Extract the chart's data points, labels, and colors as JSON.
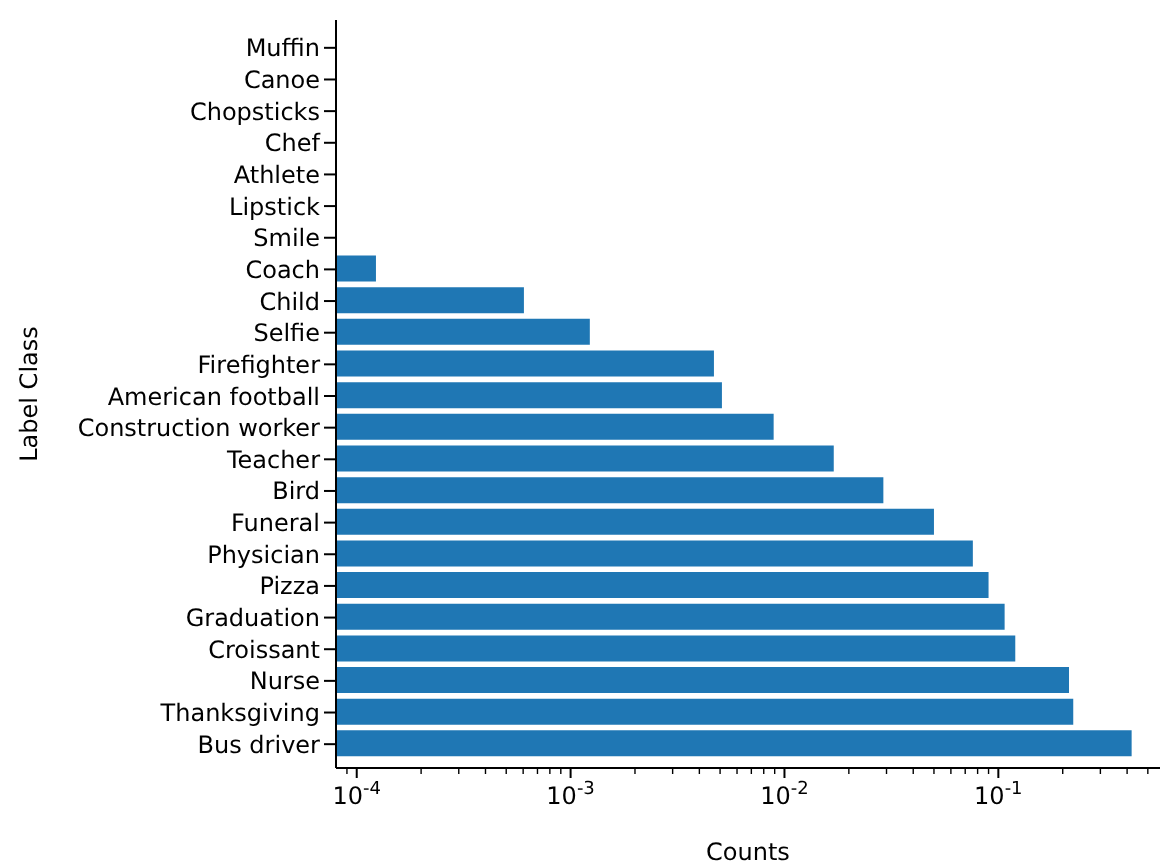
{
  "chart_data": {
    "type": "bar",
    "orientation": "horizontal",
    "xlabel": "Counts",
    "ylabel": "Label Class",
    "categories": [
      "Muffin",
      "Canoe",
      "Chopsticks",
      "Chef",
      "Athlete",
      "Lipstick",
      "Smile",
      "Coach",
      "Child",
      "Selfie",
      "Firefighter",
      "American football",
      "Construction worker",
      "Teacher",
      "Bird",
      "Funeral",
      "Physician",
      "Pizza",
      "Graduation",
      "Croissant",
      "Nurse",
      "Thanksgiving",
      "Bus driver"
    ],
    "values": [
      null,
      null,
      null,
      null,
      null,
      null,
      null,
      0.000123,
      0.000605,
      0.00123,
      0.00468,
      0.0051,
      0.0089,
      0.017,
      0.029,
      0.05,
      0.076,
      0.09,
      0.107,
      0.12,
      0.214,
      0.224,
      0.42
    ],
    "color": "#1f77b4",
    "log": "x",
    "grid": false,
    "legend": false,
    "xlim": [
      8e-05,
      0.57
    ],
    "xticks": [
      {
        "value": 9e-05,
        "label": null
      },
      {
        "value": 0.0001,
        "label": "10$^{-4}$"
      },
      {
        "value": 0.0002,
        "label": null
      },
      {
        "value": 0.0003,
        "label": null
      },
      {
        "value": 0.0004,
        "label": null
      },
      {
        "value": 0.0005,
        "label": null
      },
      {
        "value": 0.0006,
        "label": null
      },
      {
        "value": 0.0007,
        "label": null
      },
      {
        "value": 0.0008,
        "label": null
      },
      {
        "value": 0.0009,
        "label": null
      },
      {
        "value": 0.001,
        "label": "10$^{-3}$"
      },
      {
        "value": 0.002,
        "label": null
      },
      {
        "value": 0.003,
        "label": null
      },
      {
        "value": 0.004,
        "label": null
      },
      {
        "value": 0.005,
        "label": null
      },
      {
        "value": 0.006,
        "label": null
      },
      {
        "value": 0.007,
        "label": null
      },
      {
        "value": 0.008,
        "label": null
      },
      {
        "value": 0.009,
        "label": null
      },
      {
        "value": 0.01,
        "label": "10$^{-2}$"
      },
      {
        "value": 0.02,
        "label": null
      },
      {
        "value": 0.03,
        "label": null
      },
      {
        "value": 0.04,
        "label": null
      },
      {
        "value": 0.05,
        "label": null
      },
      {
        "value": 0.06,
        "label": null
      },
      {
        "value": 0.07,
        "label": null
      },
      {
        "value": 0.08,
        "label": null
      },
      {
        "value": 0.09,
        "label": null
      },
      {
        "value": 0.1,
        "label": "10$^{-1}$"
      },
      {
        "value": 0.2,
        "label": null
      },
      {
        "value": 0.3,
        "label": null
      },
      {
        "value": 0.4,
        "label": null
      },
      {
        "value": 0.5,
        "label": null
      }
    ]
  }
}
